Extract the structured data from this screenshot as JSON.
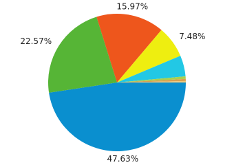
{
  "chart_data": {
    "type": "pie",
    "values": [
      47.63,
      22.57,
      15.97,
      7.48,
      4.92,
      0.6,
      0.5,
      0.33
    ],
    "value_labels": [
      "47.63%",
      "22.57%",
      "15.97%",
      "7.48%",
      null,
      null,
      null,
      null
    ],
    "colors": [
      "#0a8fcf",
      "#56b536",
      "#ee561c",
      "#eeee10",
      "#22c8e5",
      "#a8d050",
      "#d8a050",
      "#f3c878"
    ]
  }
}
